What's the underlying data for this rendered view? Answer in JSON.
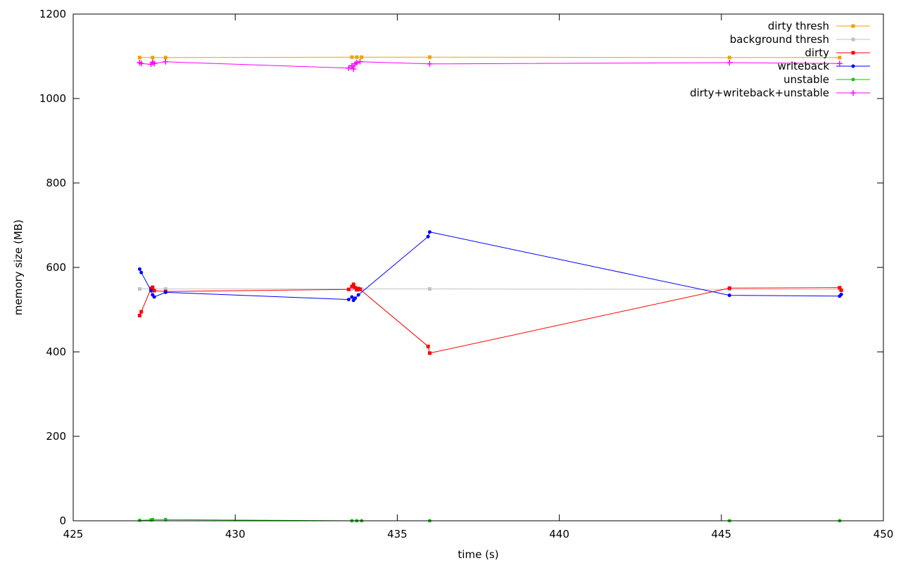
{
  "chart_data": {
    "type": "line",
    "title": "",
    "xlabel": "time (s)",
    "ylabel": "memory size (MB)",
    "xlim": [
      425,
      450
    ],
    "ylim": [
      0,
      1200
    ],
    "xticks": [
      425,
      430,
      435,
      440,
      445,
      450
    ],
    "yticks": [
      0,
      200,
      400,
      600,
      800,
      1000,
      1200
    ],
    "grid": false,
    "legend_position": "top-right",
    "series": [
      {
        "name": "dirty thresh",
        "color": "#f0a000",
        "marker": "square",
        "points": [
          [
            427.05,
            1097
          ],
          [
            427.45,
            1097
          ],
          [
            427.85,
            1097
          ],
          [
            433.6,
            1098
          ],
          [
            433.75,
            1098
          ],
          [
            433.9,
            1098
          ],
          [
            436.0,
            1098
          ],
          [
            445.25,
            1097
          ],
          [
            448.65,
            1097
          ]
        ]
      },
      {
        "name": "background thresh",
        "color": "#c0c0c0",
        "marker": "square",
        "points": [
          [
            427.05,
            549
          ],
          [
            427.45,
            549
          ],
          [
            427.85,
            549
          ],
          [
            433.6,
            549
          ],
          [
            433.75,
            549
          ],
          [
            433.9,
            549
          ],
          [
            436.0,
            549
          ],
          [
            445.25,
            548
          ],
          [
            448.65,
            548
          ]
        ]
      },
      {
        "name": "dirty",
        "color": "#ff0000",
        "marker": "square",
        "points": [
          [
            427.05,
            486
          ],
          [
            427.1,
            495
          ],
          [
            427.4,
            550
          ],
          [
            427.45,
            553
          ],
          [
            427.5,
            545
          ],
          [
            427.85,
            543
          ],
          [
            433.5,
            548
          ],
          [
            433.6,
            555
          ],
          [
            433.65,
            560
          ],
          [
            433.7,
            552
          ],
          [
            433.75,
            547
          ],
          [
            433.8,
            550
          ],
          [
            433.85,
            548
          ],
          [
            435.95,
            413
          ],
          [
            436.0,
            397
          ],
          [
            445.25,
            551
          ],
          [
            448.65,
            552
          ],
          [
            448.7,
            546
          ]
        ]
      },
      {
        "name": "writeback",
        "color": "#0000ff",
        "marker": "circle",
        "points": [
          [
            427.05,
            596
          ],
          [
            427.1,
            588
          ],
          [
            427.4,
            545
          ],
          [
            427.45,
            535
          ],
          [
            427.5,
            530
          ],
          [
            427.85,
            541
          ],
          [
            433.5,
            524
          ],
          [
            433.6,
            530
          ],
          [
            433.65,
            522
          ],
          [
            433.7,
            527
          ],
          [
            433.8,
            535
          ],
          [
            435.95,
            673
          ],
          [
            436.0,
            684
          ],
          [
            445.25,
            534
          ],
          [
            448.65,
            532
          ],
          [
            448.7,
            536
          ]
        ]
      },
      {
        "name": "unstable",
        "color": "#00cc00",
        "marker": "circle",
        "points": [
          [
            427.05,
            1
          ],
          [
            427.4,
            2
          ],
          [
            427.45,
            3
          ],
          [
            427.85,
            3
          ],
          [
            433.6,
            0
          ],
          [
            433.75,
            0
          ],
          [
            433.9,
            0
          ],
          [
            436.0,
            0
          ],
          [
            445.25,
            0
          ],
          [
            448.65,
            0
          ]
        ]
      },
      {
        "name": "dirty+writeback+unstable",
        "color": "#ff00ff",
        "marker": "plus",
        "points": [
          [
            427.05,
            1085
          ],
          [
            427.1,
            1083
          ],
          [
            427.4,
            1081
          ],
          [
            427.45,
            1086
          ],
          [
            427.5,
            1083
          ],
          [
            427.85,
            1087
          ],
          [
            433.5,
            1072
          ],
          [
            433.6,
            1078
          ],
          [
            433.65,
            1070
          ],
          [
            433.7,
            1082
          ],
          [
            433.75,
            1085
          ],
          [
            433.85,
            1087
          ],
          [
            436.0,
            1082
          ],
          [
            445.25,
            1085
          ],
          [
            448.65,
            1083
          ]
        ]
      }
    ]
  }
}
